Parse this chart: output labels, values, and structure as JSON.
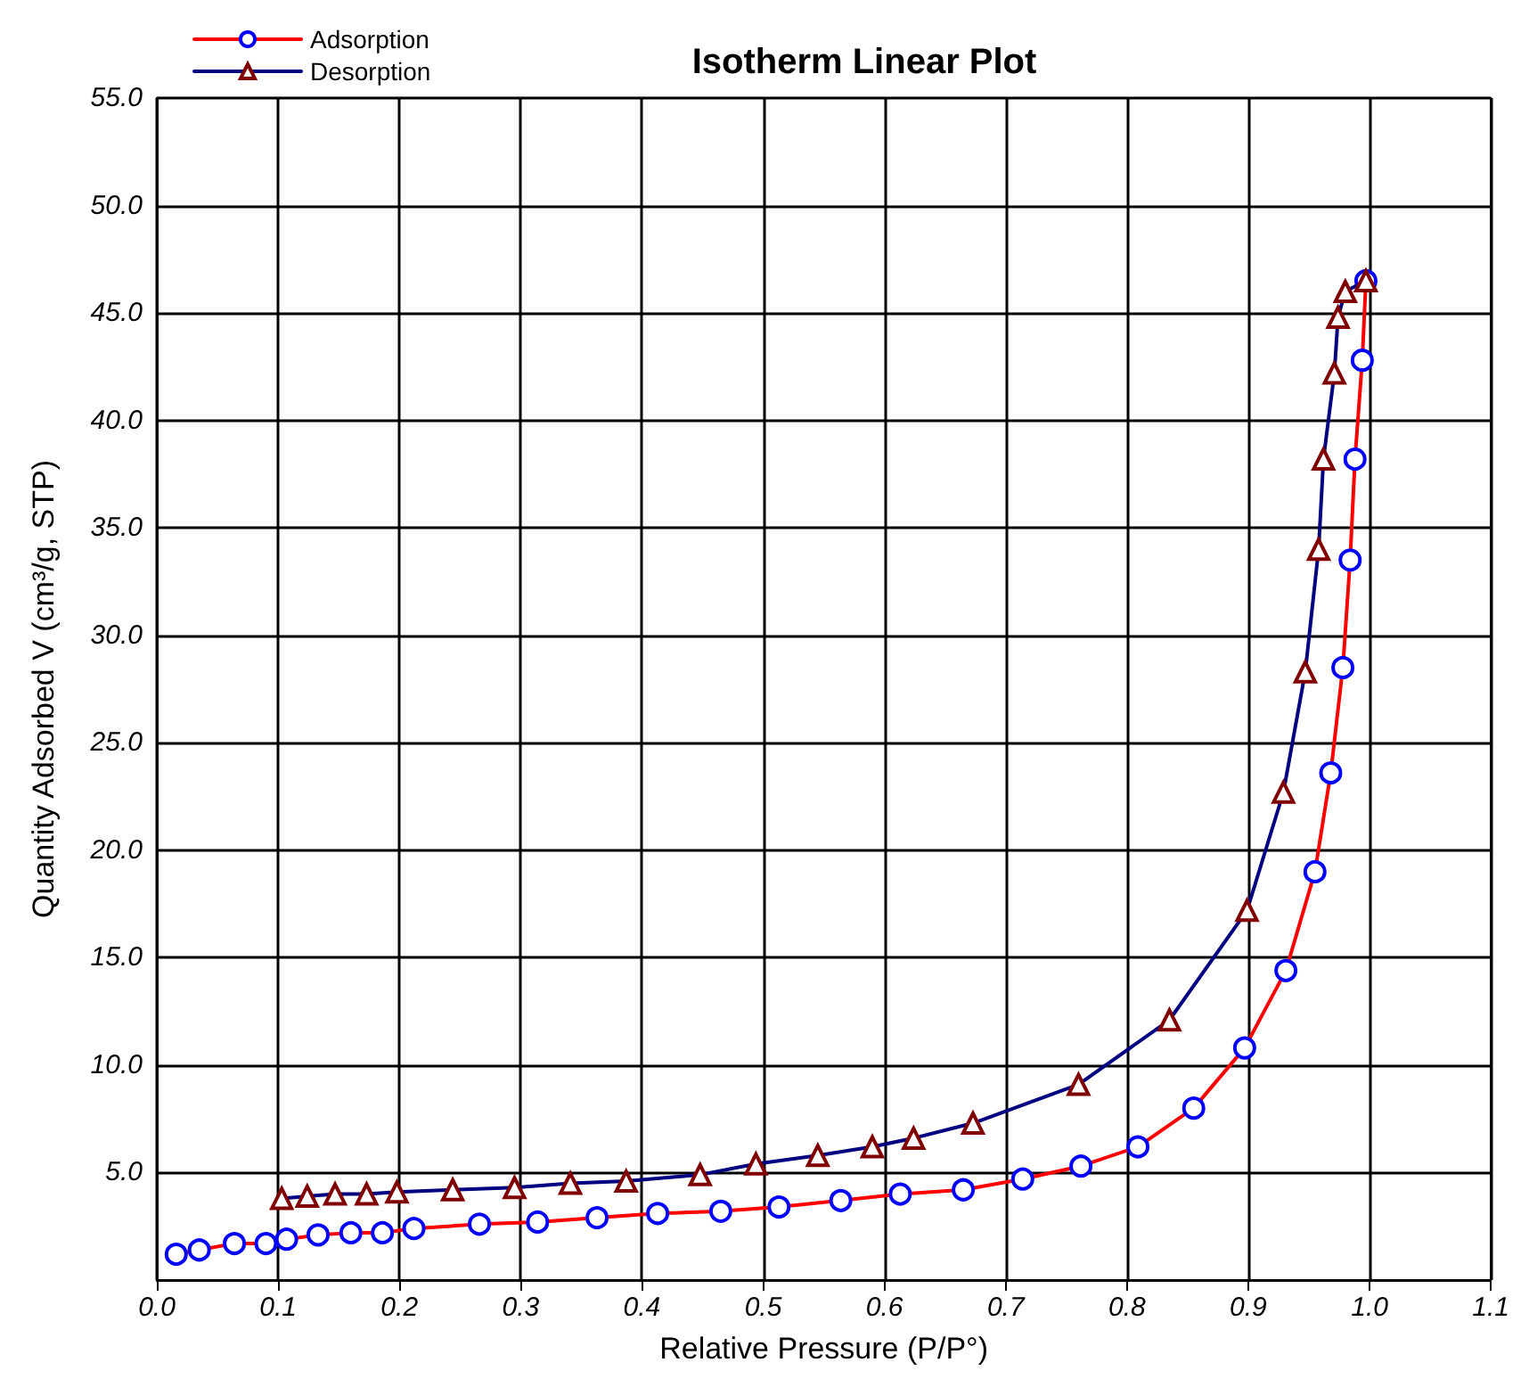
{
  "chart_data": {
    "type": "line",
    "title": "Isotherm Linear Plot",
    "xlabel": "Relative Pressure (P/P°)",
    "ylabel": "Quantity Adsorbed V (cm³/g, STP)",
    "xlim": [
      0,
      1.1
    ],
    "ylim": [
      0,
      55
    ],
    "xticks": [
      {
        "value": 0,
        "label": "0.0"
      },
      {
        "value": 0.1,
        "label": "0.1"
      },
      {
        "value": 0.2,
        "label": "0.2"
      },
      {
        "value": 0.3,
        "label": "0.3"
      },
      {
        "value": 0.4,
        "label": "0.4"
      },
      {
        "value": 0.5,
        "label": "0.5"
      },
      {
        "value": 0.6,
        "label": "0.6"
      },
      {
        "value": 0.7,
        "label": "0.7"
      },
      {
        "value": 0.8,
        "label": "0.8"
      },
      {
        "value": 0.9,
        "label": "0.9"
      },
      {
        "value": 1.0,
        "label": "1.0"
      },
      {
        "value": 1.1,
        "label": "1.1"
      }
    ],
    "yticks": [
      {
        "value": 5,
        "label": "5.0"
      },
      {
        "value": 10,
        "label": "10.0"
      },
      {
        "value": 15,
        "label": "15.0"
      },
      {
        "value": 20,
        "label": "20.0"
      },
      {
        "value": 25,
        "label": "25.0"
      },
      {
        "value": 30,
        "label": "30.0"
      },
      {
        "value": 35,
        "label": "35.0"
      },
      {
        "value": 40,
        "label": "40.0"
      },
      {
        "value": 45,
        "label": "45.0"
      },
      {
        "value": 50,
        "label": "50.0"
      },
      {
        "value": 55,
        "label": "55.0"
      }
    ],
    "grid": true,
    "legend": "top left",
    "line_style": "solid",
    "series": [
      {
        "name": "Adsorption",
        "color": "#ff0000",
        "marker": "circle",
        "x": [
          0.016,
          0.035,
          0.064,
          0.09,
          0.107,
          0.133,
          0.16,
          0.186,
          0.212,
          0.266,
          0.314,
          0.363,
          0.413,
          0.465,
          0.513,
          0.564,
          0.613,
          0.665,
          0.714,
          0.762,
          0.809,
          0.855,
          0.897,
          0.931,
          0.955,
          0.968,
          0.978,
          0.984,
          0.988,
          0.994,
          0.997
        ],
        "values": [
          1.2,
          1.4,
          1.7,
          1.7,
          1.9,
          2.1,
          2.2,
          2.2,
          2.4,
          2.6,
          2.7,
          2.9,
          3.1,
          3.2,
          3.4,
          3.7,
          4.0,
          4.2,
          4.7,
          5.3,
          6.2,
          8.0,
          10.8,
          14.4,
          19.0,
          23.6,
          28.5,
          33.5,
          38.2,
          42.8,
          46.5
        ]
      },
      {
        "name": "Desorption",
        "color": "#000080",
        "marker": "triangle",
        "x": [
          0.103,
          0.124,
          0.147,
          0.173,
          0.198,
          0.244,
          0.295,
          0.341,
          0.387,
          0.448,
          0.494,
          0.545,
          0.59,
          0.624,
          0.673,
          0.76,
          0.835,
          0.899,
          0.929,
          0.947,
          0.958,
          0.962,
          0.971,
          0.974,
          0.98,
          0.997
        ],
        "values": [
          3.8,
          3.9,
          4.0,
          4.0,
          4.1,
          4.2,
          4.3,
          4.5,
          4.6,
          4.9,
          5.4,
          5.8,
          6.2,
          6.6,
          7.3,
          9.1,
          12.1,
          17.2,
          22.7,
          28.3,
          34.0,
          38.2,
          42.2,
          44.8,
          46.0,
          46.5
        ]
      }
    ]
  }
}
